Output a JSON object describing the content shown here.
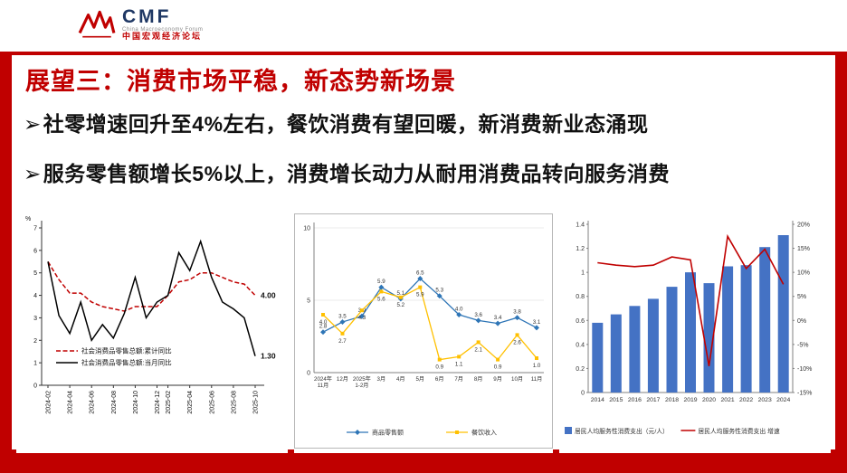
{
  "header": {
    "logo_acronym": "CMF",
    "logo_en": "China Macroeconomy Forum",
    "logo_cn": "中国宏观经济论坛"
  },
  "page": {
    "title": "展望三：消费市场平稳，新态势新场景",
    "bullet_marker": "➢",
    "bullets": [
      "社零增速回升至4%左右，餐饮消费有望回暖，新消费新业态涌现",
      "服务零售额增长5%以上，消费增长动力从耐用消费品转向服务消费"
    ]
  },
  "colors": {
    "accent_red": "#c00000",
    "navy": "#1f3864",
    "bar_blue": "#4472c4",
    "line_blue": "#2e75b6",
    "line_yellow": "#ffc000"
  },
  "chart_data": [
    {
      "type": "line",
      "title": "",
      "unit": "%",
      "ylim": [
        0,
        7
      ],
      "yticks": [
        0,
        1,
        2,
        3,
        4,
        5,
        6,
        7
      ],
      "categories": [
        "2024-02",
        "2024-03",
        "2024-04",
        "2024-05",
        "2024-06",
        "2024-07",
        "2024-08",
        "2024-09",
        "2024-10",
        "2024-11",
        "2024-12",
        "2025-02",
        "2025-03",
        "2025-04",
        "2025-05",
        "2025-06",
        "2025-07",
        "2025-08",
        "2025-09",
        "2025-10"
      ],
      "xtick_indices": [
        0,
        2,
        4,
        6,
        8,
        10,
        11,
        13,
        15,
        17,
        19
      ],
      "series": [
        {
          "name": "社会消费品零售总额:累计同比",
          "color": "#c00000",
          "style": "dashed",
          "values": [
            5.5,
            4.7,
            4.1,
            4.1,
            3.7,
            3.5,
            3.4,
            3.3,
            3.5,
            3.5,
            3.5,
            4.0,
            4.6,
            4.7,
            5.0,
            5.0,
            4.8,
            4.6,
            4.5,
            4.0
          ],
          "end_label": "4.00"
        },
        {
          "name": "社会消费品零售总额:当月同比",
          "color": "#000000",
          "style": "solid",
          "values": [
            5.5,
            3.1,
            2.3,
            3.7,
            2.0,
            2.7,
            2.1,
            3.2,
            4.8,
            3.0,
            3.7,
            4.0,
            5.9,
            5.1,
            6.4,
            4.8,
            3.7,
            3.4,
            3.0,
            1.3
          ],
          "end_label": "1.30"
        }
      ],
      "legend_position": "inside-bottom-left",
      "grid": false
    },
    {
      "type": "line",
      "title": "",
      "ylim": [
        0,
        10
      ],
      "yticks": [
        0,
        5,
        10
      ],
      "categories": [
        "2024年11月",
        "12月",
        "2025年1-2月",
        "3月",
        "4月",
        "5月",
        "6月",
        "7月",
        "8月",
        "9月",
        "10月",
        "11月"
      ],
      "series": [
        {
          "name": "商品零售额",
          "color": "#2e75b6",
          "marker": "diamond",
          "values": [
            2.8,
            3.5,
            3.9,
            5.9,
            5.1,
            6.5,
            5.3,
            4.0,
            3.6,
            3.4,
            3.8,
            3.1
          ]
        },
        {
          "name": "餐饮收入",
          "color": "#ffc000",
          "marker": "square",
          "values": [
            4.0,
            2.7,
            4.3,
            5.6,
            5.2,
            5.9,
            0.9,
            1.1,
            2.1,
            0.9,
            2.6,
            1.0
          ]
        }
      ],
      "show_point_labels": true,
      "legend_position": "bottom",
      "grid": true
    },
    {
      "type": "bar+line",
      "title": "",
      "categories": [
        "2014",
        "2015",
        "2016",
        "2017",
        "2018",
        "2019",
        "2020",
        "2021",
        "2022",
        "2023",
        "2024"
      ],
      "bar_series": {
        "name": "居民人均服务性消费支出（元/人）",
        "color": "#4472c4",
        "values": [
          0.58,
          0.65,
          0.72,
          0.78,
          0.88,
          1.0,
          0.91,
          1.05,
          1.06,
          1.21,
          1.31
        ]
      },
      "line_series": {
        "name": "居民人均服务性消费支出 增速",
        "color": "#c00000",
        "values": [
          12.0,
          11.5,
          11.2,
          11.5,
          13.2,
          12.6,
          -9.5,
          17.5,
          10.8,
          14.8,
          7.5
        ]
      },
      "ylim_left": [
        0,
        1.4
      ],
      "yticks_left": [
        0,
        0.2,
        0.4,
        0.6,
        0.8,
        1,
        1.2,
        1.4
      ],
      "ylim_right": [
        -15,
        20
      ],
      "yticks_right": [
        "-15%",
        "-10%",
        "-5%",
        "0%",
        "5%",
        "10%",
        "15%",
        "20%"
      ],
      "legend_position": "bottom",
      "grid": false
    }
  ]
}
